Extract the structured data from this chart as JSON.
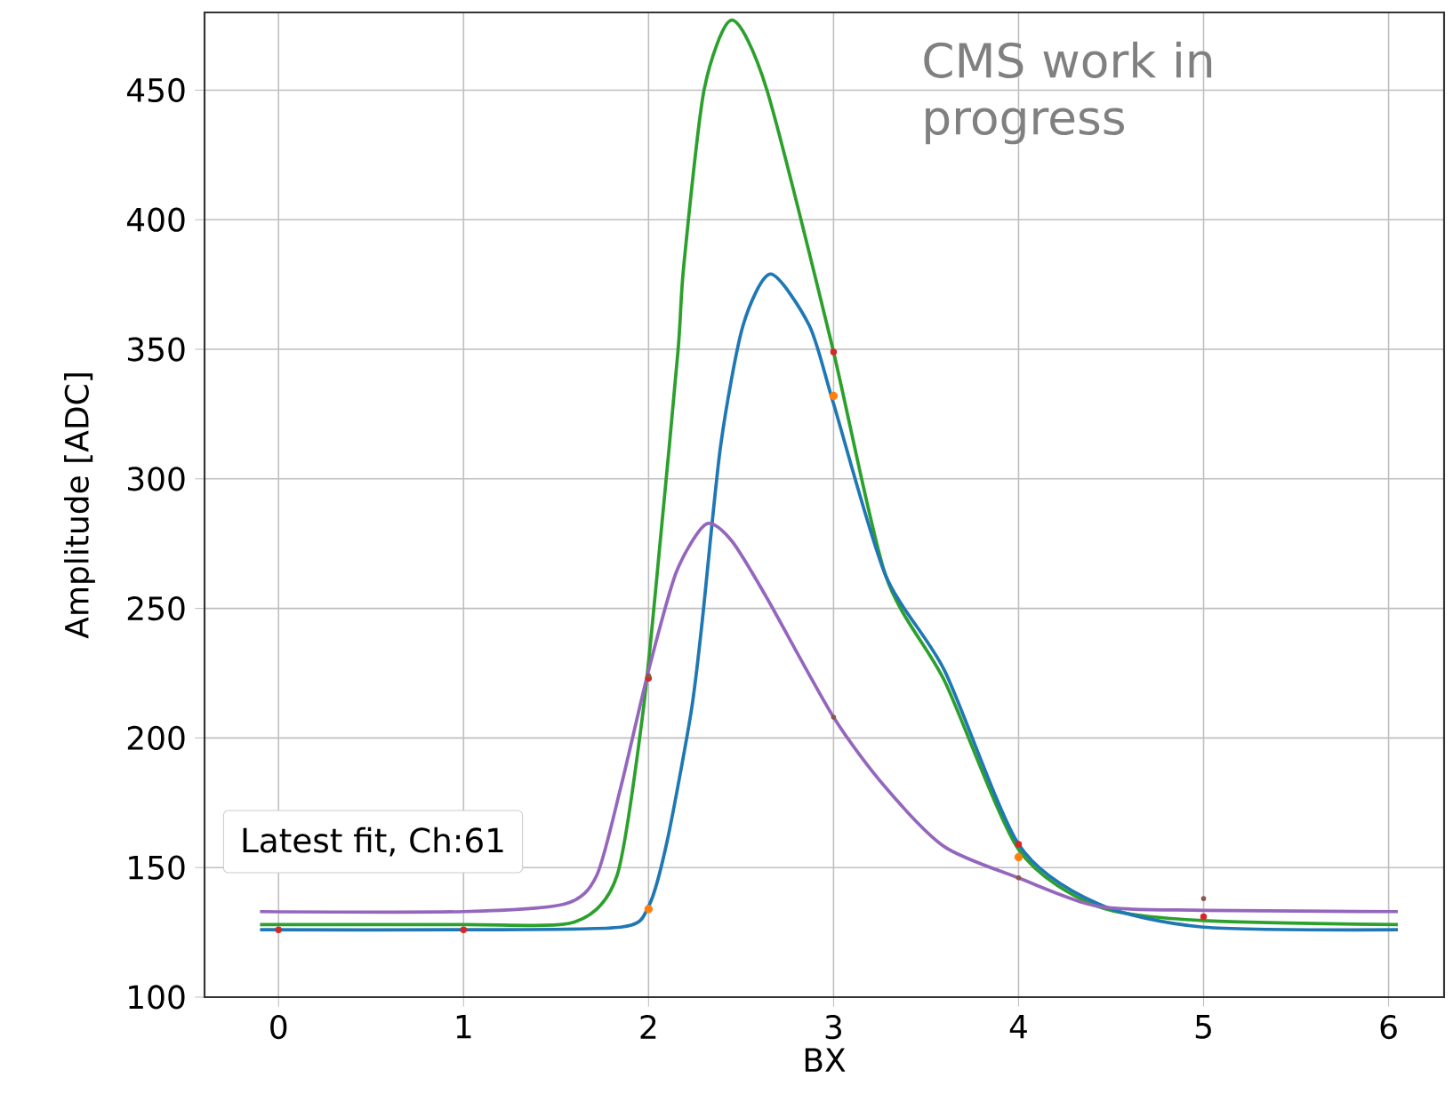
{
  "chart_data": {
    "type": "scatter",
    "xlabel": "BX",
    "ylabel": "Amplitude [ADC]",
    "annotations": [
      "CMS work in progress",
      "Latest fit, Ch:61"
    ],
    "xlim": [
      -0.4,
      6.3
    ],
    "ylim": [
      100,
      480
    ],
    "xticks": [
      0,
      1,
      2,
      3,
      4,
      5,
      6
    ],
    "yticks": [
      100,
      150,
      200,
      250,
      300,
      350,
      400,
      450
    ],
    "grid": true,
    "series": [
      {
        "type": "line",
        "marker": "none",
        "color": "#2ca02c",
        "x": [
          -0.1,
          1.0,
          1.6,
          1.83,
          1.97,
          2.07,
          2.16,
          2.19,
          2.3,
          2.45,
          2.64,
          2.99,
          3.28,
          3.6,
          4.0,
          4.43,
          5.0,
          6.05
        ],
        "values": [
          128,
          128,
          129,
          147,
          210,
          281,
          350,
          382,
          450,
          477,
          450,
          352,
          263,
          222,
          157,
          135,
          129.5,
          128
        ]
      },
      {
        "type": "line",
        "marker": "none",
        "color": "#1f77b4",
        "x": [
          -0.1,
          1.0,
          1.85,
          2.0,
          2.1,
          2.23,
          2.29,
          2.39,
          2.51,
          2.66,
          2.87,
          3.0,
          3.28,
          3.6,
          4.0,
          4.43,
          5.0,
          6.05
        ],
        "values": [
          126,
          126,
          127,
          135,
          160,
          210,
          245,
          313,
          359,
          379,
          359,
          329,
          263,
          226,
          159,
          136,
          127,
          126
        ]
      },
      {
        "type": "line",
        "marker": "none",
        "color": "#9467bd",
        "x": [
          -0.1,
          1.0,
          1.55,
          1.72,
          1.85,
          2.0,
          2.15,
          2.31,
          2.45,
          2.64,
          3.0,
          3.28,
          3.6,
          4.0,
          4.43,
          5.0,
          6.05
        ],
        "values": [
          133,
          133,
          136,
          147,
          181,
          226,
          264,
          282.5,
          276,
          254,
          208,
          181,
          158,
          146,
          135,
          133.5,
          133
        ]
      },
      {
        "marker": "circle",
        "color": "#ff7f0e",
        "x": [
          2,
          3,
          4
        ],
        "values": [
          134,
          332,
          154
        ]
      },
      {
        "marker": "circle",
        "color": "#d62728",
        "x": [
          0,
          1,
          2,
          3,
          4,
          5
        ],
        "values": [
          126,
          126,
          223,
          349,
          159,
          131
        ]
      },
      {
        "marker": "circle",
        "color": "#8c564b",
        "x": [
          2,
          3,
          4,
          5
        ],
        "values": [
          224,
          208,
          146,
          138
        ]
      }
    ]
  }
}
